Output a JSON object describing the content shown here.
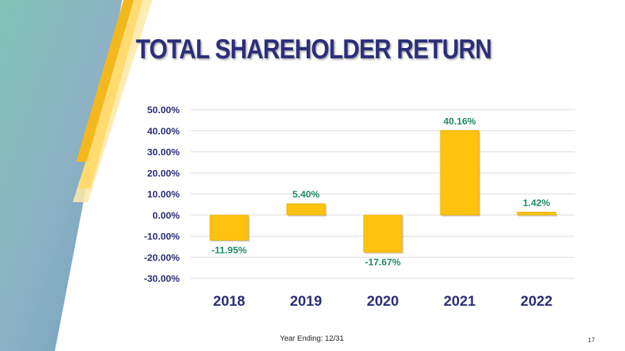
{
  "slide": {
    "title": "TOTAL SHAREHOLDER RETURN",
    "footer": "Year Ending: 12/31",
    "page_number": "17"
  },
  "colors": {
    "bar": "#FFC20E",
    "bar_dark": "#E8A800",
    "value_label": "#1E8A66",
    "axis_text": "#2B2F7A",
    "grid": "#D9D9D9",
    "title": "#2B2F7A"
  },
  "chart_data": {
    "type": "bar",
    "title": "TOTAL SHAREHOLDER RETURN",
    "categories": [
      "2018",
      "2019",
      "2020",
      "2021",
      "2022"
    ],
    "values": [
      -11.95,
      5.4,
      -17.67,
      40.16,
      1.42
    ],
    "data_labels": [
      "-11.95%",
      "5.40%",
      "-17.67%",
      "40.16%",
      "1.42%"
    ],
    "yticks": [
      50,
      40,
      30,
      20,
      10,
      0,
      -10,
      -20,
      -30
    ],
    "ytick_labels": [
      "50.00%",
      "40.00%",
      "30.00%",
      "20.00%",
      "10.00%",
      "0.00%",
      "-10.00%",
      "-20.00%",
      "-30.00%"
    ],
    "ylim": [
      -30,
      50
    ],
    "xlabel": "Year Ending: 12/31",
    "ylabel": "",
    "grid": true,
    "legend": "none"
  }
}
